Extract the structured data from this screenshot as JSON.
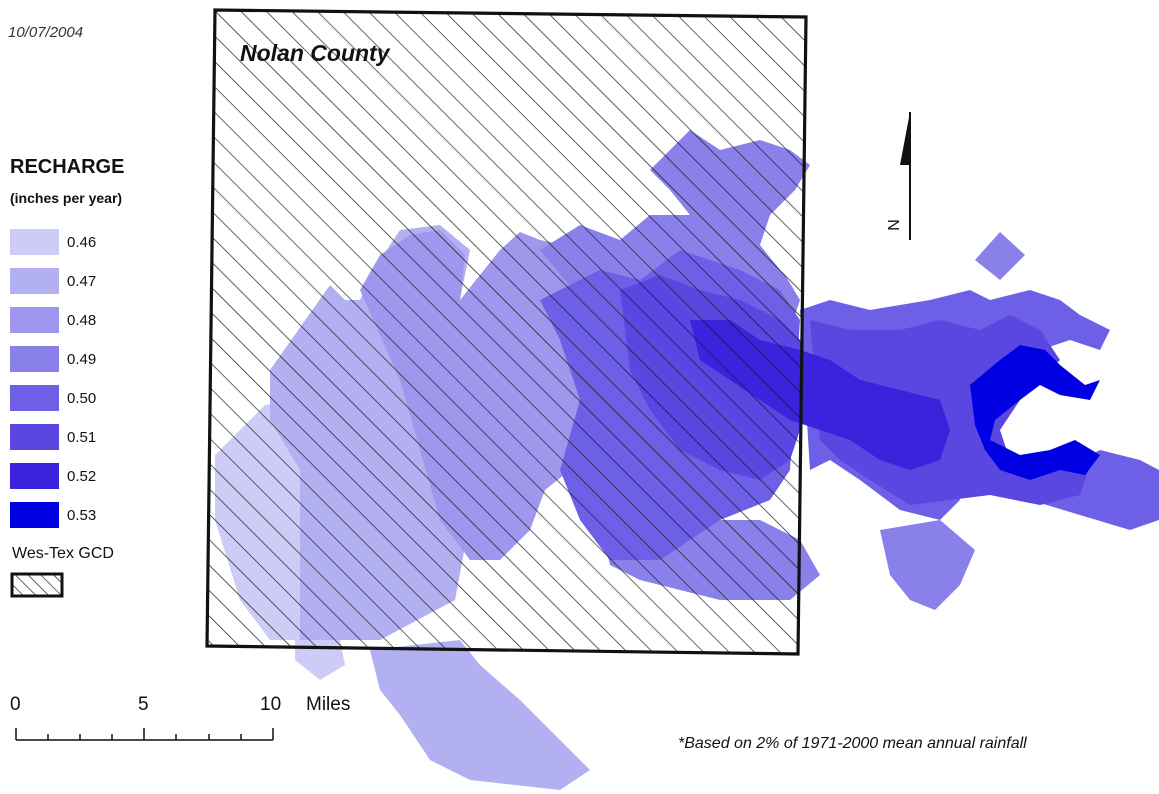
{
  "date": "10/07/2004",
  "county_label": "Nolan County",
  "legend": {
    "title": "RECHARGE",
    "units": "(inches per year)",
    "classes": [
      {
        "value": "0.46",
        "color": "#ccccf7"
      },
      {
        "value": "0.47",
        "color": "#b3b0f2"
      },
      {
        "value": "0.48",
        "color": "#9e97ed"
      },
      {
        "value": "0.49",
        "color": "#8a80ea"
      },
      {
        "value": "0.50",
        "color": "#6e60e6"
      },
      {
        "value": "0.51",
        "color": "#5a46e0"
      },
      {
        "value": "0.52",
        "color": "#3b22dc"
      },
      {
        "value": "0.53",
        "color": "#0000e2"
      }
    ],
    "gcd_label": "Wes-Tex GCD"
  },
  "scale_bar": {
    "ticks": [
      "0",
      "5",
      "10"
    ],
    "units": "Miles"
  },
  "north_arrow": {
    "label": "N"
  },
  "footnote": "*Based on 2% of 1971-2000 mean annual rainfall"
}
